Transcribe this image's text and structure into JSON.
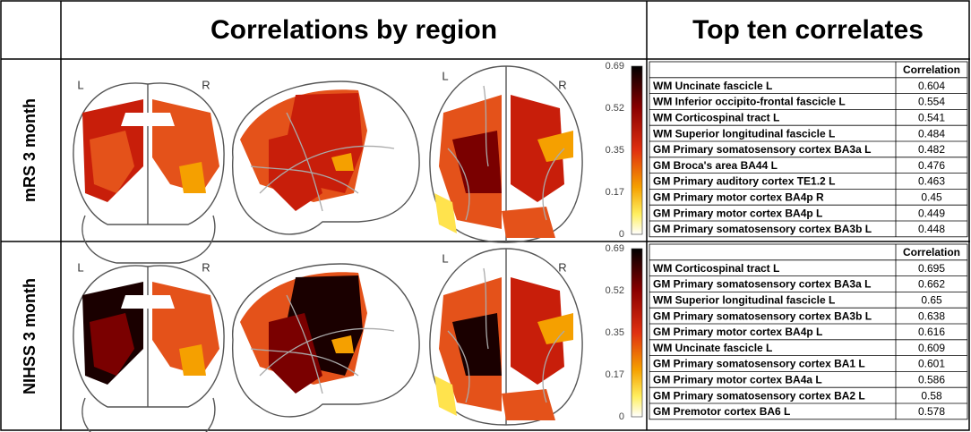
{
  "header": {
    "left": "Correlations by region",
    "right": "Top ten correlates"
  },
  "panels": [
    {
      "label": "mRS 3 month",
      "orientation_labels": [
        "L",
        "R",
        "L",
        "R"
      ],
      "colorbar_ticks": [
        0.69,
        0.52,
        0.35,
        0.17,
        0
      ],
      "table": {
        "column_header": "Correlation",
        "rows": [
          [
            "WM Uncinate fascicle L",
            0.604
          ],
          [
            "WM Inferior occipito-frontal fascicle L",
            0.554
          ],
          [
            "WM Corticospinal tract L",
            0.541
          ],
          [
            "WM Superior longitudinal fascicle L",
            0.484
          ],
          [
            "GM Primary somatosensory cortex BA3a L",
            0.482
          ],
          [
            "GM Broca's area BA44 L",
            0.476
          ],
          [
            "GM Primary auditory cortex TE1.2 L",
            0.463
          ],
          [
            "GM Primary motor cortex BA4p R",
            0.45
          ],
          [
            "GM Primary motor cortex BA4p L",
            0.449
          ],
          [
            "GM Primary somatosensory cortex BA3b L",
            0.448
          ]
        ]
      }
    },
    {
      "label": "NIHSS 3 month",
      "orientation_labels": [
        "L",
        "R",
        "L",
        "R"
      ],
      "colorbar_ticks": [
        0.69,
        0.52,
        0.35,
        0.17,
        0
      ],
      "table": {
        "column_header": "Correlation",
        "rows": [
          [
            "WM Corticospinal tract L",
            0.695
          ],
          [
            "GM Primary somatosensory cortex BA3a L",
            0.662
          ],
          [
            "WM Superior longitudinal fascicle L",
            0.65
          ],
          [
            "GM Primary somatosensory cortex BA3b L",
            0.638
          ],
          [
            "GM Primary motor cortex BA4p L",
            0.616
          ],
          [
            "WM Uncinate fascicle L",
            0.609
          ],
          [
            "GM Primary somatosensory cortex BA1 L",
            0.601
          ],
          [
            "GM Primary motor cortex BA4a L",
            0.586
          ],
          [
            "GM Primary somatosensory cortex BA2 L",
            0.58
          ],
          [
            "GM Premotor cortex BA6 L",
            0.578
          ]
        ]
      }
    }
  ]
}
